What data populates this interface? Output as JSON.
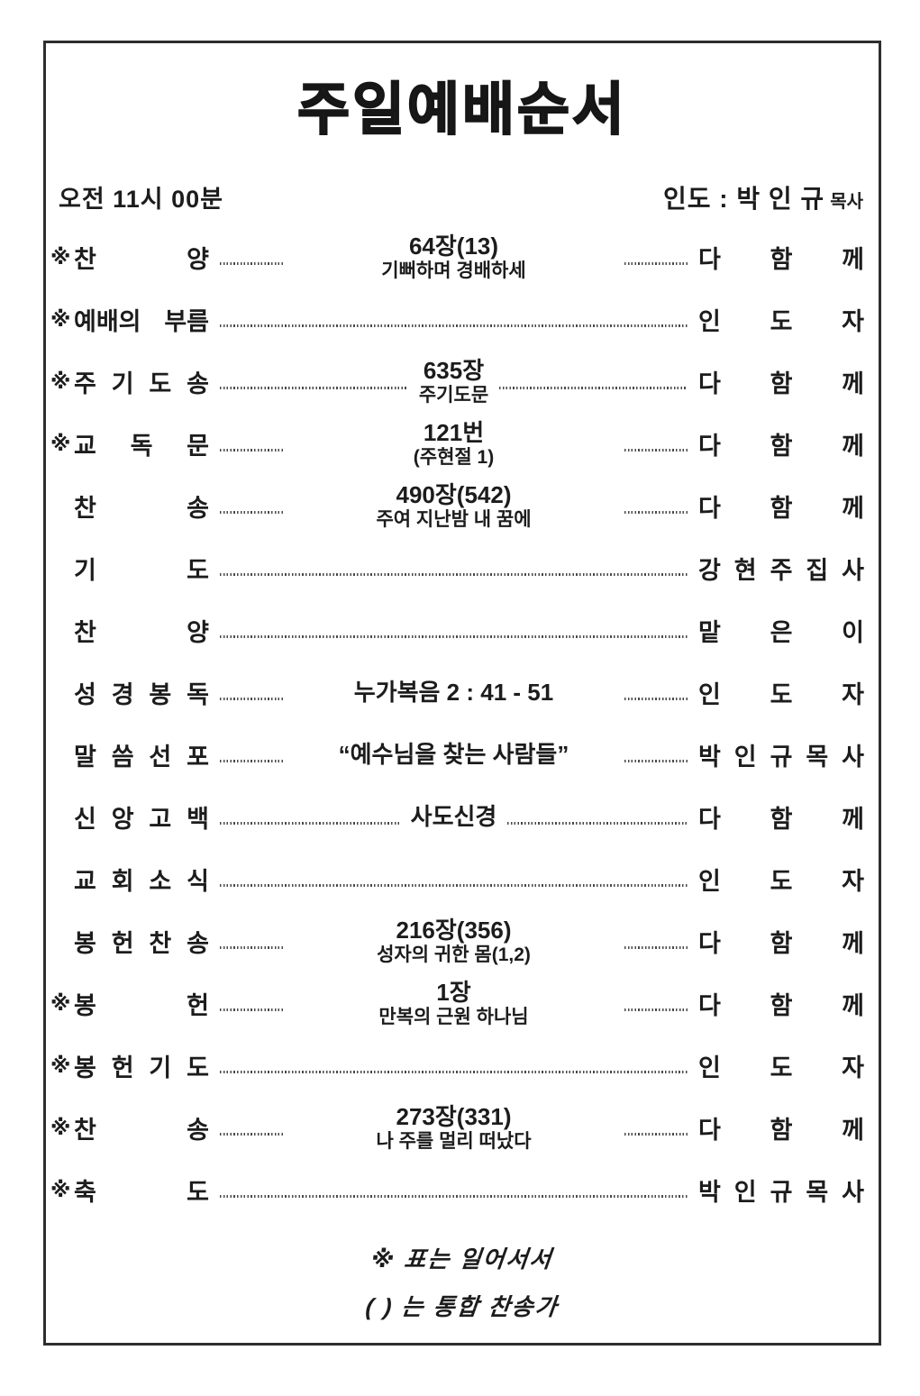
{
  "page": {
    "title": "주일예배순서"
  },
  "header": {
    "time": "오전 11시 00분",
    "leader_prefix": "인도 : 박 인 규",
    "leader_suffix": "목사"
  },
  "rows": [
    {
      "star": "※",
      "label": "찬 양",
      "center1": "64장(13)",
      "center2": "기뻐하며 경배하세",
      "right": "다 함 께",
      "leaders": "short"
    },
    {
      "star": "※",
      "label": "예배의 부름",
      "right": "인 도 자",
      "leaders": "full"
    },
    {
      "star": "※",
      "label": "주 기 도 송",
      "center1": "635장",
      "center2": "주기도문",
      "right": "다 함 께",
      "leaders": "long"
    },
    {
      "star": "※",
      "label": "교 독 문",
      "center1": "121번",
      "center2": "(주현절 1)",
      "right": "다 함 께",
      "leaders": "short"
    },
    {
      "star": "",
      "label": "찬 송",
      "center1": "490장(542)",
      "center2": "주여 지난밤 내 꿈에",
      "right": "다 함 께",
      "leaders": "short"
    },
    {
      "star": "",
      "label": "기 도",
      "right": "강 현 주 집 사",
      "leaders": "full"
    },
    {
      "star": "",
      "label": "찬 양",
      "right": "맡 은 이",
      "leaders": "full"
    },
    {
      "star": "",
      "label": "성 경 봉 독",
      "center1": "누가복음 2 : 41 - 51",
      "right": "인 도 자",
      "leaders": "short"
    },
    {
      "star": "",
      "label": "말 씀 선 포",
      "center1": "“예수님을 찾는 사람들”",
      "right": "박 인 규 목 사",
      "leaders": "short"
    },
    {
      "star": "",
      "label": "신 앙 고 백",
      "center1": "사도신경",
      "right": "다 함 께",
      "leaders": "long"
    },
    {
      "star": "",
      "label": "교 회 소 식",
      "right": "인 도 자",
      "leaders": "full"
    },
    {
      "star": "",
      "label": "봉 헌 찬 송",
      "center1": "216장(356)",
      "center2": "성자의 귀한 몸(1,2)",
      "right": "다 함 께",
      "leaders": "short"
    },
    {
      "star": "※",
      "label": "봉 헌",
      "center1": "1장",
      "center2": "만복의 근원 하나님",
      "right": "다 함 께",
      "leaders": "short"
    },
    {
      "star": "※",
      "label": "봉 헌 기 도",
      "right": "인 도 자",
      "leaders": "full"
    },
    {
      "star": "※",
      "label": "찬 송",
      "center1": "273장(331)",
      "center2": "나 주를 멀리 떠났다",
      "right": "다 함 께",
      "leaders": "short"
    },
    {
      "star": "※",
      "label": "축 도",
      "right": "박 인 규 목 사",
      "leaders": "full"
    }
  ],
  "footer": {
    "line1": "※ 표는 일어서서",
    "line2": "( ) 는 통합 찬송가"
  },
  "colors": {
    "ink": "#1c1c1c",
    "border": "#2e2e2e",
    "background": "#ffffff"
  }
}
